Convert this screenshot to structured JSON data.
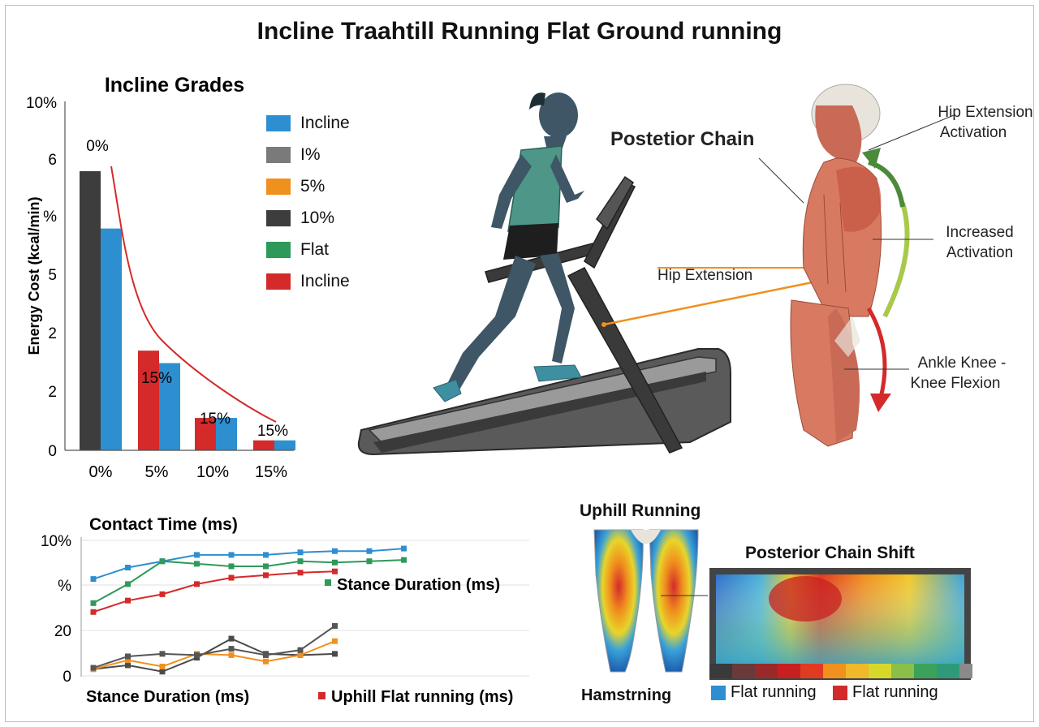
{
  "title": "Incline Traahtill Running Flat Ground running",
  "colors": {
    "dark": "#3d3d3d",
    "blue": "#2e8fd0",
    "red": "#d42a2a",
    "orange": "#f0901e",
    "green": "#2e9a5a",
    "grey": "#7a7a7a"
  },
  "legend": {
    "items": [
      {
        "label": "Incline",
        "color": "#2e8fd0"
      },
      {
        "label": "I%",
        "color": "#7a7a7a"
      },
      {
        "label": "5%",
        "color": "#f0901e"
      },
      {
        "label": "10%",
        "color": "#3d3d3d"
      },
      {
        "label": "Flat",
        "color": "#2e9a5a"
      },
      {
        "label": "Incline",
        "color": "#d42a2a"
      }
    ]
  },
  "illustration": {
    "posterior_chain": "Postetior Chain",
    "hip_extension": "Hip Extension",
    "hip_extension_activation_1": "Hip Extension",
    "hip_extension_activation_2": "Activation",
    "increased_activation_1": "Increased",
    "increased_activation_2": "Activation",
    "ankle_knee_1": "Ankle Knee -",
    "ankle_knee_2": "Knee Flexion"
  },
  "heatmap_panel": {
    "uphill_title": "Uphill Running",
    "hamstring_label": "Hamstrning",
    "shift_title": "Posterior Chain Shift",
    "legend": [
      {
        "label": "Flat running",
        "color": "#2e8fd0"
      },
      {
        "label": "Flat running",
        "color": "#d42a2a"
      }
    ]
  },
  "chart_data": [
    {
      "type": "bar",
      "title": "Incline Grades",
      "ylabel": "Energy Cost  (kcal/min)",
      "categories": [
        "0%",
        "5%",
        "10%",
        "15%"
      ],
      "y_tick_labels": [
        "0",
        "2",
        "2",
        "5",
        "%",
        "6",
        "10%"
      ],
      "series": [
        {
          "color": "#3d3d3d",
          "values": [
            5.6,
            null,
            null,
            null
          ]
        },
        {
          "color": "#d42a2a",
          "values": [
            null,
            2.0,
            0.65,
            0.2
          ]
        },
        {
          "color": "#2e8fd0",
          "values": [
            4.45,
            1.75,
            0.65,
            0.2
          ]
        }
      ],
      "trend_line": {
        "color": "#d42a2a",
        "x": [
          "0%",
          "5%",
          "10%",
          "15%"
        ],
        "y": [
          5.6,
          3.2,
          1.8,
          0.8
        ]
      },
      "data_labels": [
        "0%",
        "15%",
        "15%",
        "15%"
      ],
      "ylim": [
        0,
        7
      ]
    },
    {
      "type": "line",
      "title": "Contact Time (ms)",
      "xlabel": "Stance Duration (ms)",
      "y_tick_labels": [
        "0",
        "20",
        "%",
        "10%"
      ],
      "x": [
        1,
        2,
        3,
        4,
        5,
        6,
        7,
        8,
        9,
        10
      ],
      "series": [
        {
          "color": "#2e8fd0",
          "values": [
            72,
            81,
            86,
            91,
            91,
            91,
            93,
            94,
            94,
            96
          ]
        },
        {
          "color": "#2e9a5a",
          "values": [
            53,
            68,
            86,
            84,
            82,
            82,
            86,
            85,
            86,
            87
          ]
        },
        {
          "color": "#d42a2a",
          "values": [
            46,
            55,
            60,
            68,
            73,
            75,
            77,
            78,
            null,
            null
          ]
        },
        {
          "color": "#4a4a4a",
          "values": [
            1,
            4,
            -1,
            10,
            25,
            13,
            12,
            13,
            null,
            null
          ]
        },
        {
          "color": "#f0901e",
          "values": [
            1,
            8,
            3,
            13,
            12,
            7,
            12,
            23,
            null,
            null
          ]
        },
        {
          "color": "#555555",
          "values": [
            2,
            11,
            13,
            12,
            17,
            12,
            16,
            35,
            null,
            null
          ]
        }
      ],
      "annotations": [
        "Stance Duration (ms)",
        "Uphill Flat running (ms)"
      ],
      "ylim": [
        -5,
        105
      ]
    }
  ]
}
